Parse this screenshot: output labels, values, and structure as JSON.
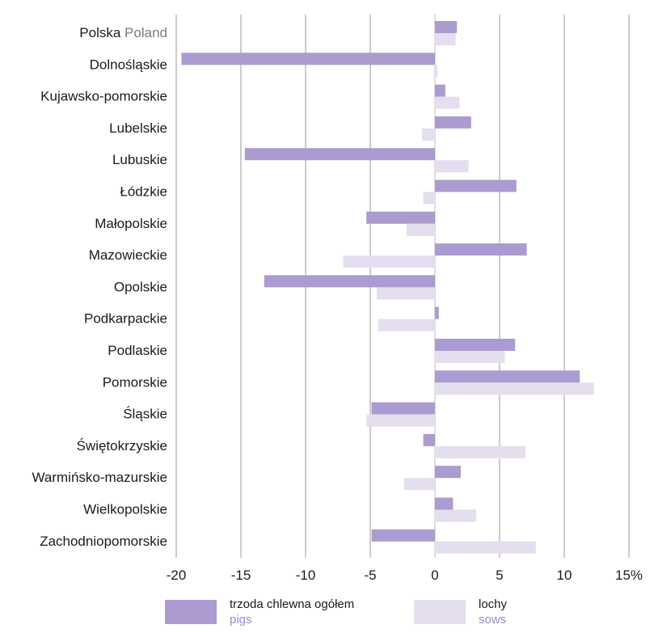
{
  "chart_data": {
    "type": "bar",
    "orientation": "horizontal",
    "categories": [
      {
        "label": "Polska",
        "label_en": "Poland"
      },
      {
        "label": "Dolnośląskie"
      },
      {
        "label": "Kujawsko-pomorskie"
      },
      {
        "label": "Lubelskie"
      },
      {
        "label": "Lubuskie"
      },
      {
        "label": "Łódzkie"
      },
      {
        "label": "Małopolskie"
      },
      {
        "label": "Mazowieckie"
      },
      {
        "label": "Opolskie"
      },
      {
        "label": "Podkarpackie"
      },
      {
        "label": "Podlaskie"
      },
      {
        "label": "Pomorskie"
      },
      {
        "label": "Śląskie"
      },
      {
        "label": "Świętokrzyskie"
      },
      {
        "label": "Warmińsko-mazurskie"
      },
      {
        "label": "Wielkopolskie"
      },
      {
        "label": "Zachodniopomorskie"
      }
    ],
    "series": [
      {
        "name": "trzoda chlewna ogółem",
        "name_en": "pigs",
        "color": "#ac9bd0",
        "values": [
          1.7,
          -19.6,
          0.8,
          2.8,
          -14.7,
          6.3,
          -5.3,
          7.1,
          -13.2,
          0.3,
          6.2,
          11.2,
          -4.9,
          -0.9,
          2.0,
          1.4,
          -4.9
        ]
      },
      {
        "name": "lochy",
        "name_en": "sows",
        "color": "#e5deef",
        "values": [
          1.6,
          0.2,
          1.9,
          -1.0,
          2.6,
          -0.9,
          -2.2,
          -7.1,
          -4.5,
          -4.4,
          5.4,
          12.3,
          -5.3,
          7.0,
          -2.4,
          3.2,
          7.8
        ]
      }
    ],
    "xlim": [
      -20,
      15
    ],
    "xticks": [
      "-20",
      "-15",
      "-10",
      "-5",
      "0",
      "5",
      "10",
      "15%"
    ],
    "grid": "vertical"
  }
}
